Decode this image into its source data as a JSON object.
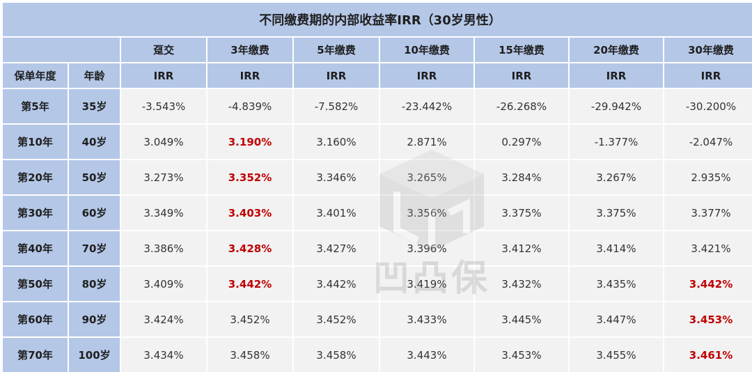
{
  "title": "不同缴费期的内部收益率IRR（30岁男性）",
  "columns": [
    {
      "label": "趸交",
      "sub": "IRR"
    },
    {
      "label": "3年缴费",
      "sub": "IRR"
    },
    {
      "label": "5年缴费",
      "sub": "IRR"
    },
    {
      "label": "10年缴费",
      "sub": "IRR"
    },
    {
      "label": "15年缴费",
      "sub": "IRR"
    },
    {
      "label": "20年缴费",
      "sub": "IRR"
    },
    {
      "label": "30年缴费",
      "sub": "IRR"
    }
  ],
  "side_headers": {
    "policy_year": "保单年度",
    "age": "年龄"
  },
  "rows": [
    {
      "year": "第5年",
      "age": "35岁",
      "values": [
        "-3.543%",
        "-4.839%",
        "-7.582%",
        "-23.442%",
        "-26.268%",
        "-29.942%",
        "-30.200%"
      ]
    },
    {
      "year": "第10年",
      "age": "40岁",
      "values": [
        "3.049%",
        "3.190%",
        "3.160%",
        "2.871%",
        "0.297%",
        "-1.377%",
        "-2.047%"
      ]
    },
    {
      "year": "第20年",
      "age": "50岁",
      "values": [
        "3.273%",
        "3.352%",
        "3.346%",
        "3.265%",
        "3.284%",
        "3.267%",
        "2.935%"
      ]
    },
    {
      "year": "第30年",
      "age": "60岁",
      "values": [
        "3.349%",
        "3.403%",
        "3.401%",
        "3.356%",
        "3.375%",
        "3.375%",
        "3.377%"
      ]
    },
    {
      "year": "第40年",
      "age": "70岁",
      "values": [
        "3.386%",
        "3.428%",
        "3.427%",
        "3.396%",
        "3.412%",
        "3.414%",
        "3.421%"
      ]
    },
    {
      "year": "第50年",
      "age": "80岁",
      "values": [
        "3.409%",
        "3.442%",
        "3.442%",
        "3.419%",
        "3.432%",
        "3.435%",
        "3.442%"
      ]
    },
    {
      "year": "第60年",
      "age": "90岁",
      "values": [
        "3.424%",
        "3.452%",
        "3.452%",
        "3.433%",
        "3.445%",
        "3.447%",
        "3.453%"
      ]
    },
    {
      "year": "第70年",
      "age": "100岁",
      "values": [
        "3.434%",
        "3.458%",
        "3.458%",
        "3.443%",
        "3.453%",
        "3.455%",
        "3.461%"
      ]
    }
  ],
  "highlighted_cells": [
    [
      1,
      1
    ],
    [
      2,
      1
    ],
    [
      3,
      1
    ],
    [
      4,
      1
    ],
    [
      5,
      1
    ],
    [
      5,
      6
    ],
    [
      6,
      6
    ],
    [
      7,
      6
    ]
  ],
  "colors": {
    "header_bg": "#b4c7e7",
    "cell_bg": "#f2f2f2",
    "highlight_text": "#c00000"
  },
  "watermark": {
    "text": "凹凸保",
    "icon": "cube-logo-icon"
  }
}
